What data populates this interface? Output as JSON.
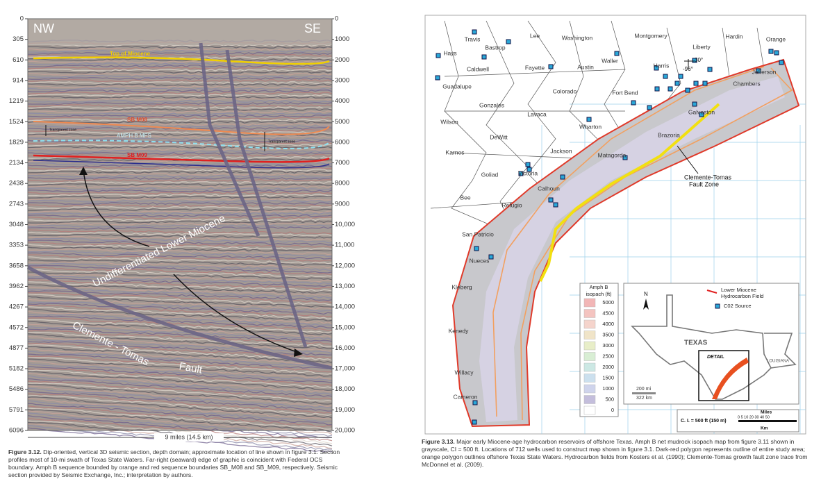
{
  "left_figure": {
    "nw": "NW",
    "se": "SE",
    "depth_m": [
      "0",
      "305",
      "610",
      "914",
      "1219",
      "1524",
      "1829",
      "2134",
      "2438",
      "2743",
      "3048",
      "3353",
      "3658",
      "3962",
      "4267",
      "4572",
      "4877",
      "5182",
      "5486",
      "5791",
      "6096"
    ],
    "depth_ft": [
      "0",
      "1000",
      "2000",
      "3000",
      "4000",
      "5000",
      "6000",
      "7000",
      "8000",
      "9000",
      "10,000",
      "11,000",
      "12,000",
      "13,000",
      "14,000",
      "15,000",
      "16,000",
      "17,000",
      "18,000",
      "19,000",
      "20,000"
    ],
    "annotations": {
      "top_miocene": "Top of Miocene",
      "sb_m08": "SB M08",
      "transparent_1": "Transparent zone",
      "amph_b": "AMPH B MFS",
      "transparent_2": "Transparent zone",
      "sb_m09": "SB M09",
      "lower_miocene": "Undifferentiated Lower Miocene",
      "fault_name": "Clemente - Tomas",
      "fault": "Fault"
    },
    "scale": "9 miles (14.5 km)",
    "caption": {
      "label": "Figure 3.12.",
      "text": "Dip-oriented, vertical 3D seismic section, depth domain; approximate location of line shown in figure 3.1. Section profiles most of 10-mi swath of Texas State Waters. Far-right (seaward) edge of graphic is coincident with Federal OCS boundary. Amph B sequence bounded by orange and red sequence boundaries SB_M08 and SB_M09, respectively.  Seismic section provided by Seismic Exchange, Inc.; interpretation by authors."
    }
  },
  "right_figure": {
    "counties": [
      "Travis",
      "Bastrop",
      "Lee",
      "Washington",
      "Montgomery",
      "Hardin",
      "Hays",
      "Liberty",
      "Orange",
      "Caldwell",
      "Fayette",
      "Austin",
      "Waller",
      "Harris",
      "Guadalupe",
      "Colorado",
      "Jefferson",
      "Fort Bend",
      "Chambers",
      "Gonzales",
      "Lavaca",
      "Galveston",
      "Wilson",
      "Wharton",
      "Brazoria",
      "DeWitt",
      "Karnes",
      "Jackson",
      "Matagorda",
      "Goliad",
      "Victoria",
      "Calhoun",
      "Bee",
      "Refugio",
      "San Patricio",
      "Nueces",
      "Kleberg",
      "Kenedy",
      "Willacy",
      "Cameron"
    ],
    "lat": "30°",
    "lon": "-96°",
    "fault_zone": [
      "Clemente-Tomas",
      "Fault Zone"
    ],
    "legend": {
      "title": [
        "Amph B",
        "isopach (ft)"
      ],
      "levels": [
        "5000",
        "4500",
        "4000",
        "3500",
        "3000",
        "2500",
        "2000",
        "1500",
        "1000",
        "500",
        "0"
      ]
    },
    "inset": {
      "north": "N",
      "field": [
        "Lower Miocene",
        "Hydrocarbon Field"
      ],
      "source": "C02 Source",
      "texas": "TEXAS",
      "louisiana": "LOUISIANA",
      "detail": "DETAIL",
      "mi": "200 mi",
      "km": "322 km"
    },
    "scale": {
      "ci": "C. I. = 500 ft (150 m)",
      "miles": "Miles",
      "mile_ticks": "0 5 10   20   30   40   50",
      "km": "Km"
    },
    "caption": {
      "label": "Figure 3.13.",
      "text": "Major early Miocene-age hydrocarbon reservoirs of offshore Texas. Amph B net mudrock isopach map from figure 3.11 shown in grayscale, CI = 500 ft. Locations of 712 wells used to construct map shown in figure 3.1. Dark-red polygon represents outline of entire study area; orange polygon outlines offshore Texas State Waters. Hydrocarbon fields from Kosters et al. (1990); Clemente-Tomas growth fault zone trace from McDonnel et al. (2009)."
    }
  }
}
